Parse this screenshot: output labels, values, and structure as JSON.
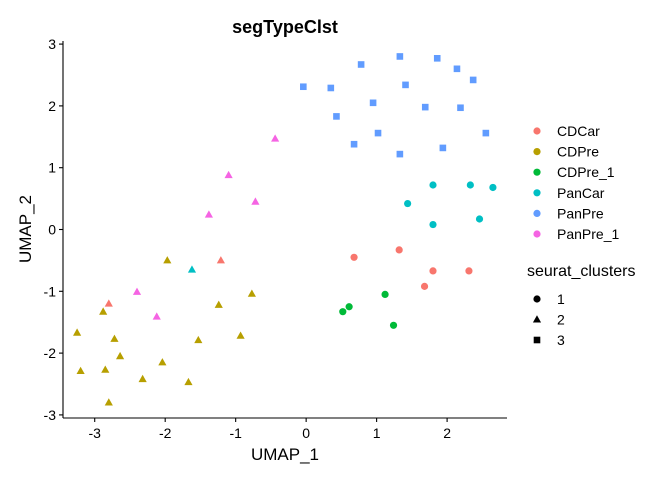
{
  "chart_data": {
    "type": "scatter",
    "title": "segTypeClst",
    "xlabel": "UMAP_1",
    "ylabel": "UMAP_2",
    "xlim": [
      -3.45,
      2.85
    ],
    "ylim": [
      -3.05,
      3.05
    ],
    "xticks": [
      -3,
      -2,
      -1,
      0,
      1,
      2
    ],
    "yticks": [
      -3,
      -2,
      -1,
      0,
      1,
      2,
      3
    ],
    "grid": false,
    "legend_position": "right",
    "colors": {
      "CDCar": "#F8766D",
      "CDPre": "#B79F00",
      "CDPre_1": "#00BA38",
      "PanCar": "#00BFC4",
      "PanPre": "#619CFF",
      "PanPre_1": "#F564E3"
    },
    "color_legend": {
      "title": "",
      "entries": [
        "CDCar",
        "CDPre",
        "CDPre_1",
        "PanCar",
        "PanPre",
        "PanPre_1"
      ]
    },
    "shape_legend": {
      "title": "seurat_clusters",
      "entries": [
        {
          "label": "1",
          "shape": "circle"
        },
        {
          "label": "2",
          "shape": "triangle"
        },
        {
          "label": "3",
          "shape": "square"
        }
      ]
    },
    "points": [
      {
        "x": 0.68,
        "y": -0.45,
        "group": "CDCar",
        "cluster": "1"
      },
      {
        "x": 1.32,
        "y": -0.33,
        "group": "CDCar",
        "cluster": "1"
      },
      {
        "x": 1.8,
        "y": -0.67,
        "group": "CDCar",
        "cluster": "1"
      },
      {
        "x": 1.68,
        "y": -0.92,
        "group": "CDCar",
        "cluster": "1"
      },
      {
        "x": 2.31,
        "y": -0.67,
        "group": "CDCar",
        "cluster": "1"
      },
      {
        "x": 0.52,
        "y": -1.33,
        "group": "CDPre_1",
        "cluster": "1"
      },
      {
        "x": 0.61,
        "y": -1.25,
        "group": "CDPre_1",
        "cluster": "1"
      },
      {
        "x": 1.12,
        "y": -1.05,
        "group": "CDPre_1",
        "cluster": "1"
      },
      {
        "x": 1.24,
        "y": -1.55,
        "group": "CDPre_1",
        "cluster": "1"
      },
      {
        "x": 1.44,
        "y": 0.42,
        "group": "PanCar",
        "cluster": "1"
      },
      {
        "x": 1.8,
        "y": 0.72,
        "group": "PanCar",
        "cluster": "1"
      },
      {
        "x": 1.8,
        "y": 0.08,
        "group": "PanCar",
        "cluster": "1"
      },
      {
        "x": 2.33,
        "y": 0.72,
        "group": "PanCar",
        "cluster": "1"
      },
      {
        "x": 2.46,
        "y": 0.17,
        "group": "PanCar",
        "cluster": "1"
      },
      {
        "x": 2.65,
        "y": 0.68,
        "group": "PanCar",
        "cluster": "1"
      },
      {
        "x": -1.97,
        "y": -0.5,
        "group": "CDPre",
        "cluster": "2"
      },
      {
        "x": -2.88,
        "y": -1.33,
        "group": "CDPre",
        "cluster": "2"
      },
      {
        "x": -1.24,
        "y": -1.22,
        "group": "CDPre",
        "cluster": "2"
      },
      {
        "x": -0.77,
        "y": -1.04,
        "group": "CDPre",
        "cluster": "2"
      },
      {
        "x": -3.25,
        "y": -1.67,
        "group": "CDPre",
        "cluster": "2"
      },
      {
        "x": -2.72,
        "y": -1.77,
        "group": "CDPre",
        "cluster": "2"
      },
      {
        "x": -1.53,
        "y": -1.79,
        "group": "CDPre",
        "cluster": "2"
      },
      {
        "x": -0.93,
        "y": -1.72,
        "group": "CDPre",
        "cluster": "2"
      },
      {
        "x": -2.64,
        "y": -2.05,
        "group": "CDPre",
        "cluster": "2"
      },
      {
        "x": -2.04,
        "y": -2.15,
        "group": "CDPre",
        "cluster": "2"
      },
      {
        "x": -3.2,
        "y": -2.29,
        "group": "CDPre",
        "cluster": "2"
      },
      {
        "x": -2.85,
        "y": -2.27,
        "group": "CDPre",
        "cluster": "2"
      },
      {
        "x": -2.32,
        "y": -2.42,
        "group": "CDPre",
        "cluster": "2"
      },
      {
        "x": -1.67,
        "y": -2.47,
        "group": "CDPre",
        "cluster": "2"
      },
      {
        "x": -2.8,
        "y": -2.8,
        "group": "CDPre",
        "cluster": "2"
      },
      {
        "x": -1.62,
        "y": -0.65,
        "group": "PanCar",
        "cluster": "2"
      },
      {
        "x": -1.21,
        "y": -0.5,
        "group": "CDCar",
        "cluster": "2"
      },
      {
        "x": -2.8,
        "y": -1.2,
        "group": "CDCar",
        "cluster": "2"
      },
      {
        "x": -0.44,
        "y": 1.47,
        "group": "PanPre_1",
        "cluster": "2"
      },
      {
        "x": -1.1,
        "y": 0.88,
        "group": "PanPre_1",
        "cluster": "2"
      },
      {
        "x": -0.72,
        "y": 0.45,
        "group": "PanPre_1",
        "cluster": "2"
      },
      {
        "x": -1.38,
        "y": 0.24,
        "group": "PanPre_1",
        "cluster": "2"
      },
      {
        "x": -2.4,
        "y": -1.01,
        "group": "PanPre_1",
        "cluster": "2"
      },
      {
        "x": -2.12,
        "y": -1.41,
        "group": "PanPre_1",
        "cluster": "2"
      },
      {
        "x": -0.04,
        "y": 2.31,
        "group": "PanPre",
        "cluster": "3"
      },
      {
        "x": 0.35,
        "y": 2.29,
        "group": "PanPre",
        "cluster": "3"
      },
      {
        "x": 0.43,
        "y": 1.83,
        "group": "PanPre",
        "cluster": "3"
      },
      {
        "x": 0.78,
        "y": 2.67,
        "group": "PanPre",
        "cluster": "3"
      },
      {
        "x": 0.68,
        "y": 1.38,
        "group": "PanPre",
        "cluster": "3"
      },
      {
        "x": 0.95,
        "y": 2.05,
        "group": "PanPre",
        "cluster": "3"
      },
      {
        "x": 1.02,
        "y": 1.56,
        "group": "PanPre",
        "cluster": "3"
      },
      {
        "x": 1.33,
        "y": 2.8,
        "group": "PanPre",
        "cluster": "3"
      },
      {
        "x": 1.41,
        "y": 2.34,
        "group": "PanPre",
        "cluster": "3"
      },
      {
        "x": 1.33,
        "y": 1.22,
        "group": "PanPre",
        "cluster": "3"
      },
      {
        "x": 1.69,
        "y": 1.98,
        "group": "PanPre",
        "cluster": "3"
      },
      {
        "x": 1.86,
        "y": 2.77,
        "group": "PanPre",
        "cluster": "3"
      },
      {
        "x": 1.94,
        "y": 1.32,
        "group": "PanPre",
        "cluster": "3"
      },
      {
        "x": 2.14,
        "y": 2.6,
        "group": "PanPre",
        "cluster": "3"
      },
      {
        "x": 2.19,
        "y": 1.97,
        "group": "PanPre",
        "cluster": "3"
      },
      {
        "x": 2.37,
        "y": 2.42,
        "group": "PanPre",
        "cluster": "3"
      },
      {
        "x": 2.55,
        "y": 1.56,
        "group": "PanPre",
        "cluster": "3"
      }
    ]
  }
}
